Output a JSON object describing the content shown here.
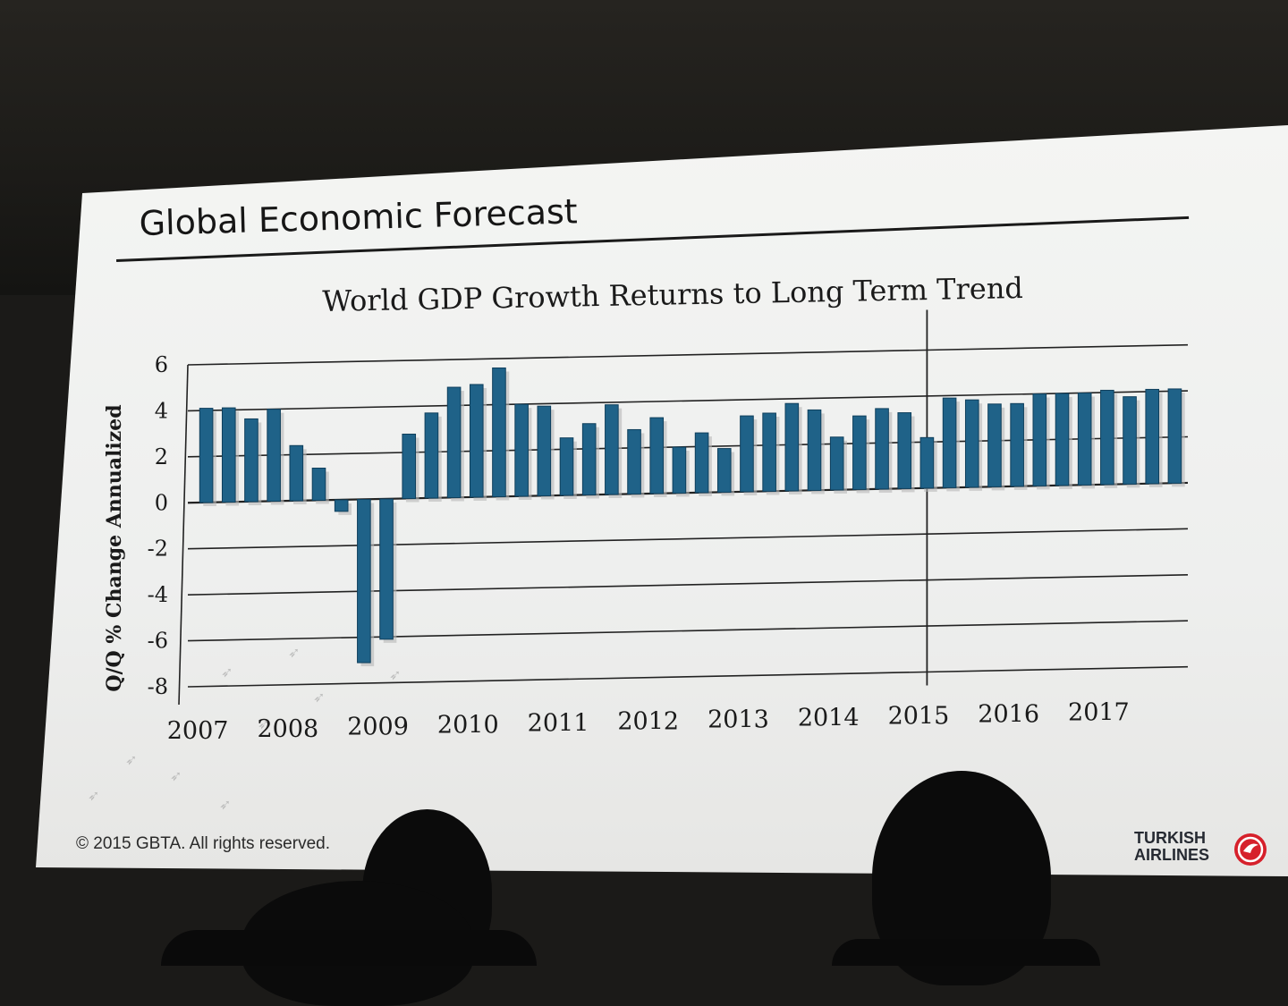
{
  "slide": {
    "title": "Global Economic Forecast",
    "copyright": "© 2015 GBTA. All rights reserved.",
    "logo_text": "TURKISH\nAIRLINES",
    "icon": "turkish-airlines-bird-icon"
  },
  "colors": {
    "bar": "#1f6288",
    "bar_edge": "#0f3f5c",
    "shadow": "#b8b8b8",
    "grid": "#222222",
    "text": "#1a1a1a",
    "logo_red": "#d6202b"
  },
  "chart_data": {
    "type": "bar",
    "title": "World GDP Growth Returns to Long Term Trend",
    "ylabel": "Q/Q % Change Annualized",
    "xlabel": "",
    "ylim": [
      -8,
      6
    ],
    "yticks": [
      6,
      4,
      2,
      0,
      -2,
      -4,
      -6,
      -8
    ],
    "year_labels": [
      "2007",
      "2008",
      "2009",
      "2010",
      "2011",
      "2012",
      "2013",
      "2014",
      "2015",
      "2016",
      "2017"
    ],
    "grid": true,
    "forecast_divider_after_category": 32,
    "categories": [
      "2007Q1",
      "2007Q2",
      "2007Q3",
      "2007Q4",
      "2008Q1",
      "2008Q2",
      "2008Q3",
      "2008Q4",
      "2009Q1",
      "2009Q2",
      "2009Q3",
      "2009Q4",
      "2010Q1",
      "2010Q2",
      "2010Q3",
      "2010Q4",
      "2011Q1",
      "2011Q2",
      "2011Q3",
      "2011Q4",
      "2012Q1",
      "2012Q2",
      "2012Q3",
      "2012Q4",
      "2013Q1",
      "2013Q2",
      "2013Q3",
      "2013Q4",
      "2014Q1",
      "2014Q2",
      "2014Q3",
      "2014Q4",
      "2015Q1",
      "2015Q2",
      "2015Q3",
      "2015Q4",
      "2016Q1",
      "2016Q2",
      "2016Q3",
      "2016Q4",
      "2017Q1",
      "2017Q2",
      "2017Q3",
      "2017Q4"
    ],
    "values": [
      4.1,
      4.1,
      3.6,
      4.0,
      2.4,
      1.4,
      -0.5,
      -7.1,
      -6.1,
      2.8,
      3.7,
      4.8,
      4.9,
      5.6,
      4.0,
      3.9,
      2.5,
      3.1,
      3.9,
      2.8,
      3.3,
      2.0,
      2.6,
      1.9,
      3.3,
      3.4,
      3.8,
      3.5,
      2.3,
      3.2,
      3.5,
      3.3,
      2.2,
      3.9,
      3.8,
      3.6,
      3.6,
      4.0,
      4.0,
      4.0,
      4.1,
      3.8,
      4.1,
      4.1
    ]
  }
}
